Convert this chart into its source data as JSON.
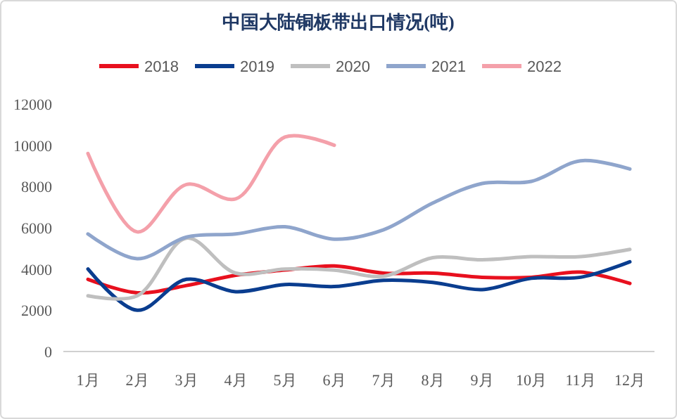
{
  "chart_data": {
    "type": "line",
    "title": "中国大陆铜板带出口情况(吨)",
    "categories": [
      "1月",
      "2月",
      "3月",
      "4月",
      "5月",
      "6月",
      "7月",
      "8月",
      "9月",
      "10月",
      "11月",
      "12月"
    ],
    "series": [
      {
        "name": "2018",
        "color": "#e8101e",
        "values": [
          3500,
          2850,
          3200,
          3700,
          3950,
          4150,
          3800,
          3800,
          3600,
          3600,
          3850,
          3300
        ]
      },
      {
        "name": "2019",
        "color": "#0a3d8f",
        "values": [
          4000,
          2000,
          3500,
          2900,
          3250,
          3150,
          3450,
          3350,
          3000,
          3550,
          3600,
          4350
        ]
      },
      {
        "name": "2020",
        "color": "#bfbfbf",
        "values": [
          2700,
          2700,
          5500,
          3800,
          4000,
          3950,
          3650,
          4550,
          4450,
          4600,
          4600,
          4950
        ]
      },
      {
        "name": "2021",
        "color": "#8fa5cc",
        "values": [
          5700,
          4500,
          5550,
          5700,
          6050,
          5450,
          5900,
          7200,
          8150,
          8250,
          9250,
          8850
        ]
      },
      {
        "name": "2022",
        "color": "#f4a0aa",
        "values": [
          9600,
          5800,
          8100,
          7400,
          10400,
          10000,
          null,
          null,
          null,
          null,
          null,
          null
        ]
      }
    ],
    "ylim": [
      0,
      12000
    ],
    "yticks": [
      0,
      2000,
      4000,
      6000,
      8000,
      10000,
      12000
    ],
    "grid": false,
    "legend": "top",
    "marker": "none",
    "line_style": "solid"
  }
}
